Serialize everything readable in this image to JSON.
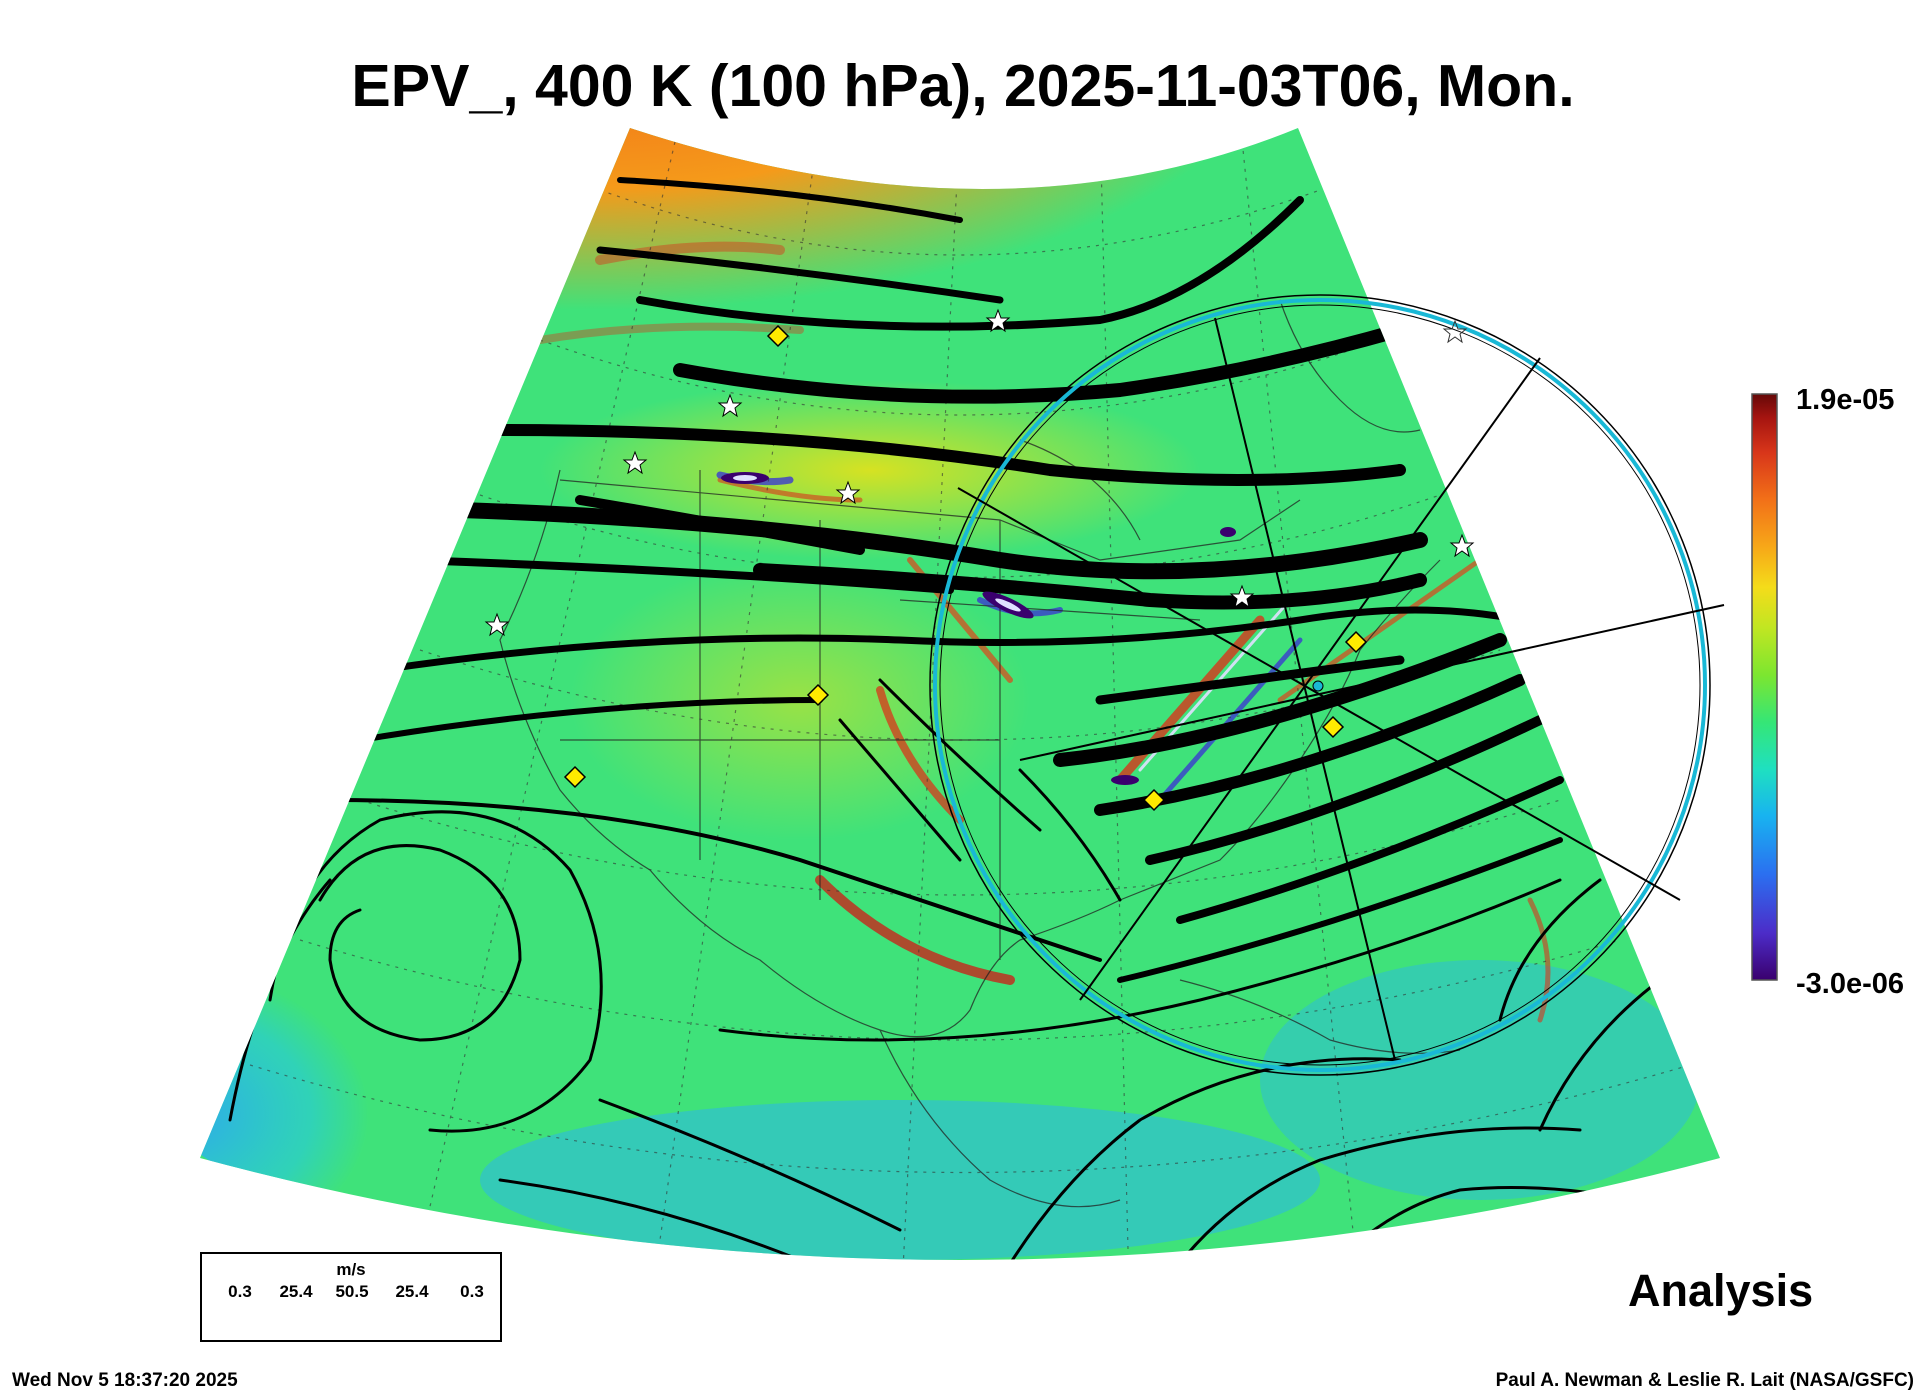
{
  "title": "EPV_, 400 K (100 hPa), 2025-11-03T06, Mon.",
  "colorbar": {
    "max_label": "1.9e-05",
    "min_label": "-3.0e-06",
    "colors": [
      "#3a006e",
      "#4c2cc8",
      "#2b6ff0",
      "#18b3f0",
      "#1fe0c0",
      "#35e676",
      "#7ce630",
      "#c0e622",
      "#f4dc1a",
      "#f7a718",
      "#f27018",
      "#d8361a",
      "#a51410",
      "#650808"
    ]
  },
  "wind_legend": {
    "unit": "m/s",
    "values": [
      "0.3",
      "25.4",
      "50.5",
      "25.4",
      "0.3"
    ]
  },
  "panel_label": "Analysis",
  "timestamp": "Wed Nov  5 18:37:20 2025",
  "credit": "Paul A. Newman & Leslie R. Lait (NASA/GSFC)"
}
